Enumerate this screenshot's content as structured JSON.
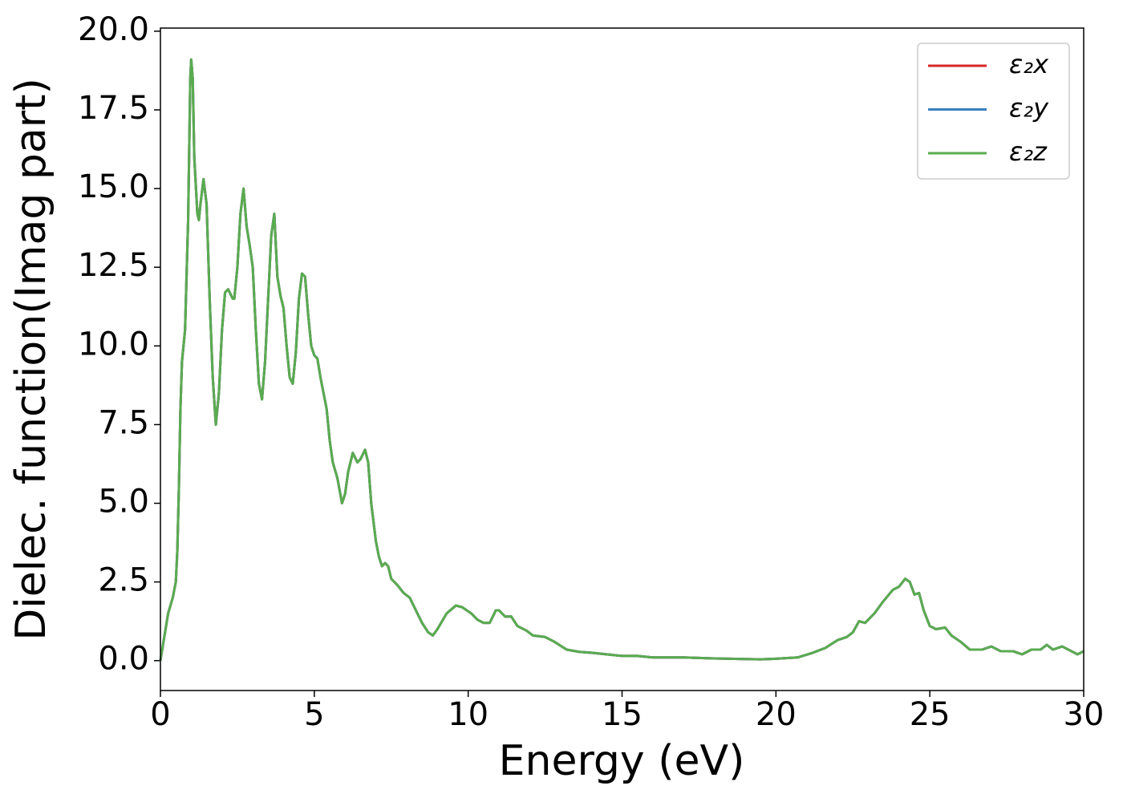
{
  "chart_data": {
    "type": "line",
    "xlabel": "Energy (eV)",
    "ylabel": "Dielec. function(Imag part)",
    "xlim": [
      0,
      30
    ],
    "ylim": [
      -0.95,
      20.1
    ],
    "xticks": [
      0,
      5,
      10,
      15,
      20,
      25,
      30
    ],
    "yticks": [
      {
        "value": 0,
        "label": "0.0"
      },
      2.5,
      {
        "value": 5,
        "label": "5.0"
      },
      7.5,
      {
        "value": 10,
        "label": "10.0"
      },
      12.5,
      {
        "value": 15,
        "label": "15.0"
      },
      17.5,
      {
        "value": 20,
        "label": "20.0"
      }
    ],
    "legend": "upper right",
    "grid": false,
    "x": [
      0,
      0.25,
      0.4,
      0.5,
      0.55,
      0.6,
      0.65,
      0.7,
      0.8,
      0.9,
      0.97,
      1.0,
      1.05,
      1.1,
      1.2,
      1.25,
      1.3,
      1.4,
      1.5,
      1.6,
      1.7,
      1.8,
      1.9,
      2.0,
      2.1,
      2.2,
      2.35,
      2.4,
      2.5,
      2.6,
      2.7,
      2.8,
      2.9,
      3.0,
      3.1,
      3.2,
      3.3,
      3.4,
      3.5,
      3.6,
      3.7,
      3.8,
      3.9,
      4.0,
      4.1,
      4.2,
      4.3,
      4.4,
      4.5,
      4.6,
      4.7,
      4.8,
      4.9,
      5.0,
      5.1,
      5.2,
      5.4,
      5.5,
      5.6,
      5.75,
      5.9,
      6.0,
      6.1,
      6.25,
      6.4,
      6.5,
      6.65,
      6.75,
      6.85,
      7.0,
      7.1,
      7.2,
      7.3,
      7.4,
      7.5,
      7.7,
      7.9,
      8.1,
      8.3,
      8.5,
      8.7,
      8.85,
      9.0,
      9.3,
      9.6,
      9.8,
      10.1,
      10.3,
      10.5,
      10.7,
      10.9,
      11.0,
      11.2,
      11.4,
      11.6,
      11.9,
      12.1,
      12.5,
      12.8,
      13.2,
      13.6,
      14.0,
      14.5,
      15.0,
      15.5,
      16.0,
      17.0,
      18.0,
      19.0,
      19.5,
      20.0,
      20.7,
      21.2,
      21.6,
      22.0,
      22.3,
      22.5,
      22.7,
      22.9,
      23.2,
      23.5,
      23.8,
      24.0,
      24.2,
      24.35,
      24.5,
      24.65,
      24.8,
      25.0,
      25.2,
      25.5,
      25.7,
      26.0,
      26.3,
      26.7,
      27.0,
      27.3,
      27.7,
      28.0,
      28.3,
      28.6,
      28.8,
      29.0,
      29.3,
      29.6,
      29.8,
      30.0
    ],
    "series": [
      {
        "name": "ε₂x",
        "color": "#d62728",
        "values": [
          0,
          1.5,
          2.0,
          2.5,
          3.5,
          5.5,
          8,
          9.5,
          10.5,
          14,
          18.5,
          19.1,
          18.5,
          16,
          14.2,
          14.0,
          14.5,
          15.3,
          14.5,
          11.5,
          9,
          7.5,
          8.5,
          10.5,
          11.7,
          11.8,
          11.5,
          11.5,
          12.5,
          14.2,
          15.0,
          13.8,
          13.2,
          12.5,
          10.5,
          8.8,
          8.3,
          9.5,
          11.5,
          13.5,
          14.2,
          12.2,
          11.6,
          11.2,
          10,
          9.0,
          8.8,
          9.8,
          11.5,
          12.3,
          12.2,
          11,
          10,
          9.7,
          9.6,
          9,
          8,
          7,
          6.3,
          5.8,
          5.0,
          5.3,
          6.0,
          6.6,
          6.3,
          6.4,
          6.7,
          6.3,
          5,
          3.8,
          3.3,
          3.0,
          3.1,
          3.0,
          2.6,
          2.4,
          2.15,
          2.0,
          1.6,
          1.2,
          0.9,
          0.8,
          1.0,
          1.5,
          1.75,
          1.7,
          1.5,
          1.3,
          1.2,
          1.2,
          1.6,
          1.6,
          1.4,
          1.4,
          1.1,
          0.95,
          0.8,
          0.75,
          0.6,
          0.35,
          0.28,
          0.25,
          0.2,
          0.15,
          0.15,
          0.1,
          0.1,
          0.07,
          0.05,
          0.04,
          0.06,
          0.1,
          0.25,
          0.4,
          0.65,
          0.75,
          0.9,
          1.25,
          1.2,
          1.5,
          1.9,
          2.25,
          2.35,
          2.6,
          2.5,
          2.1,
          2.15,
          1.6,
          1.1,
          1.0,
          1.05,
          0.8,
          0.6,
          0.35,
          0.35,
          0.45,
          0.3,
          0.3,
          0.2,
          0.35,
          0.35,
          0.5,
          0.35,
          0.45,
          0.3,
          0.2,
          0.3
        ]
      },
      {
        "name": "ε₂y",
        "color": "#3a7fc1",
        "values": [
          0,
          1.5,
          2.0,
          2.5,
          3.5,
          5.5,
          8,
          9.5,
          10.5,
          14,
          18.5,
          19.1,
          18.5,
          16,
          14.2,
          14.0,
          14.5,
          15.3,
          14.5,
          11.5,
          9,
          7.5,
          8.5,
          10.5,
          11.7,
          11.8,
          11.5,
          11.5,
          12.5,
          14.2,
          15.0,
          13.8,
          13.2,
          12.5,
          10.5,
          8.8,
          8.3,
          9.5,
          11.5,
          13.5,
          14.2,
          12.2,
          11.6,
          11.2,
          10,
          9.0,
          8.8,
          9.8,
          11.5,
          12.3,
          12.2,
          11,
          10,
          9.7,
          9.6,
          9,
          8,
          7,
          6.3,
          5.8,
          5.0,
          5.3,
          6.0,
          6.6,
          6.3,
          6.4,
          6.7,
          6.3,
          5,
          3.8,
          3.3,
          3.0,
          3.1,
          3.0,
          2.6,
          2.4,
          2.15,
          2.0,
          1.6,
          1.2,
          0.9,
          0.8,
          1.0,
          1.5,
          1.75,
          1.7,
          1.5,
          1.3,
          1.2,
          1.2,
          1.6,
          1.6,
          1.4,
          1.4,
          1.1,
          0.95,
          0.8,
          0.75,
          0.6,
          0.35,
          0.28,
          0.25,
          0.2,
          0.15,
          0.15,
          0.1,
          0.1,
          0.07,
          0.05,
          0.04,
          0.06,
          0.1,
          0.25,
          0.4,
          0.65,
          0.75,
          0.9,
          1.25,
          1.2,
          1.5,
          1.9,
          2.25,
          2.35,
          2.6,
          2.5,
          2.1,
          2.15,
          1.6,
          1.1,
          1.0,
          1.05,
          0.8,
          0.6,
          0.35,
          0.35,
          0.45,
          0.3,
          0.3,
          0.2,
          0.35,
          0.35,
          0.5,
          0.35,
          0.45,
          0.3,
          0.2,
          0.3
        ]
      },
      {
        "name": "ε₂z",
        "color": "#5aab50",
        "values": [
          0,
          1.5,
          2.0,
          2.5,
          3.5,
          5.5,
          8,
          9.5,
          10.5,
          14,
          18.5,
          19.1,
          18.5,
          16,
          14.2,
          14.0,
          14.5,
          15.3,
          14.5,
          11.5,
          9,
          7.5,
          8.5,
          10.5,
          11.7,
          11.8,
          11.5,
          11.5,
          12.5,
          14.2,
          15.0,
          13.8,
          13.2,
          12.5,
          10.5,
          8.8,
          8.3,
          9.5,
          11.5,
          13.5,
          14.2,
          12.2,
          11.6,
          11.2,
          10,
          9.0,
          8.8,
          9.8,
          11.5,
          12.3,
          12.2,
          11,
          10,
          9.7,
          9.6,
          9,
          8,
          7,
          6.3,
          5.8,
          5.0,
          5.3,
          6.0,
          6.6,
          6.3,
          6.4,
          6.7,
          6.3,
          5,
          3.8,
          3.3,
          3.0,
          3.1,
          3.0,
          2.6,
          2.4,
          2.15,
          2.0,
          1.6,
          1.2,
          0.9,
          0.8,
          1.0,
          1.5,
          1.75,
          1.7,
          1.5,
          1.3,
          1.2,
          1.2,
          1.6,
          1.6,
          1.4,
          1.4,
          1.1,
          0.95,
          0.8,
          0.75,
          0.6,
          0.35,
          0.28,
          0.25,
          0.2,
          0.15,
          0.15,
          0.1,
          0.1,
          0.07,
          0.05,
          0.04,
          0.06,
          0.1,
          0.25,
          0.4,
          0.65,
          0.75,
          0.9,
          1.25,
          1.2,
          1.5,
          1.9,
          2.25,
          2.35,
          2.6,
          2.5,
          2.1,
          2.15,
          1.6,
          1.1,
          1.0,
          1.05,
          0.8,
          0.6,
          0.35,
          0.35,
          0.45,
          0.3,
          0.3,
          0.2,
          0.35,
          0.35,
          0.5,
          0.35,
          0.45,
          0.3,
          0.2,
          0.3
        ]
      }
    ]
  }
}
